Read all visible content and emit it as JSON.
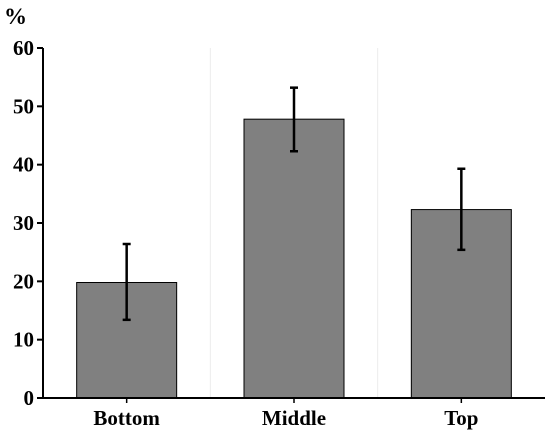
{
  "chart_data": {
    "type": "bar",
    "unit_label": "%",
    "categories": [
      "Bottom",
      "Middle",
      "Top"
    ],
    "values": [
      19.8,
      47.8,
      32.3
    ],
    "error_low": [
      13.4,
      42.3,
      25.4
    ],
    "error_high": [
      26.4,
      53.2,
      39.3
    ],
    "ylim": [
      0,
      60
    ],
    "yticks": [
      0,
      10,
      20,
      30,
      40,
      50,
      60
    ],
    "grid": false,
    "bar_color": "#808080",
    "bar_edge_color": "#000000"
  }
}
